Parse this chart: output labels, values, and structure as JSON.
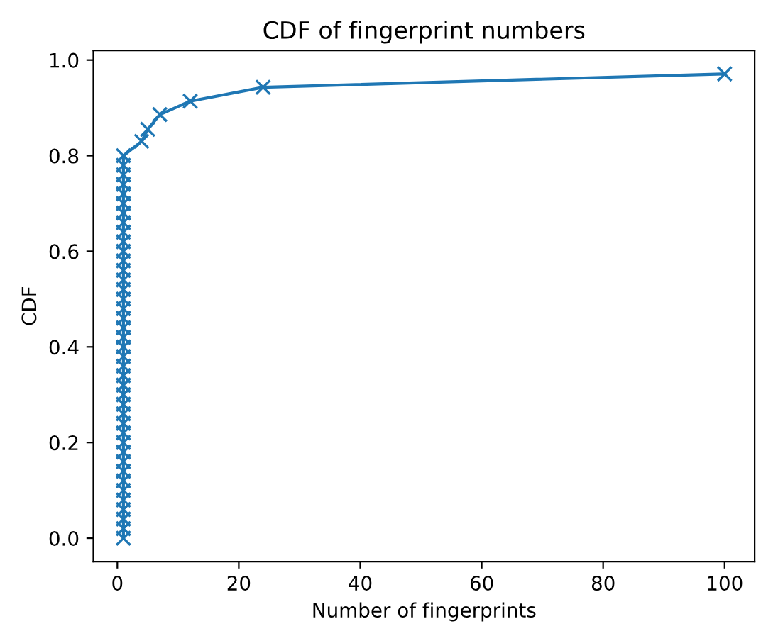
{
  "chart_data": {
    "type": "line",
    "title": "CDF of fingerprint numbers",
    "xlabel": "Number of fingerprints",
    "ylabel": "CDF",
    "x": [
      1,
      1,
      1,
      1,
      1,
      1,
      1,
      1,
      1,
      1,
      1,
      1,
      1,
      1,
      1,
      1,
      1,
      1,
      1,
      1,
      1,
      1,
      1,
      1,
      1,
      1,
      1,
      1,
      1,
      1,
      1,
      1,
      1,
      1,
      1,
      1,
      1,
      1,
      1,
      1,
      1,
      4,
      5,
      7,
      12,
      24,
      100
    ],
    "series": [
      {
        "color": "#1f77b4",
        "values": [
          0,
          0.02,
          0.04,
          0.06,
          0.08,
          0.1,
          0.12,
          0.14,
          0.16,
          0.18,
          0.2,
          0.22,
          0.24,
          0.26,
          0.28,
          0.3,
          0.32,
          0.34,
          0.36,
          0.38,
          0.4,
          0.42,
          0.44,
          0.46,
          0.48,
          0.5,
          0.52,
          0.54,
          0.56,
          0.58,
          0.6,
          0.62,
          0.64,
          0.66,
          0.68,
          0.7,
          0.72,
          0.74,
          0.76,
          0.78,
          0.8,
          0.83,
          0.855,
          0.886,
          0.914,
          0.943,
          0.971
        ]
      }
    ],
    "xlim": [
      -3.95,
      104.95
    ],
    "ylim": [
      -0.049,
      1.02
    ],
    "xticks": [
      0,
      20,
      40,
      60,
      80,
      100
    ],
    "yticks": [
      {
        "value": 0,
        "label": "0.0"
      },
      {
        "value": 0.2,
        "label": "0.2"
      },
      {
        "value": 0.4,
        "label": "0.4"
      },
      {
        "value": 0.6,
        "label": "0.6"
      },
      {
        "value": 0.8,
        "label": "0.8"
      },
      {
        "value": 1,
        "label": "1.0"
      }
    ],
    "marker": "cross",
    "line_style": "solid",
    "grid": false,
    "legend": false
  }
}
